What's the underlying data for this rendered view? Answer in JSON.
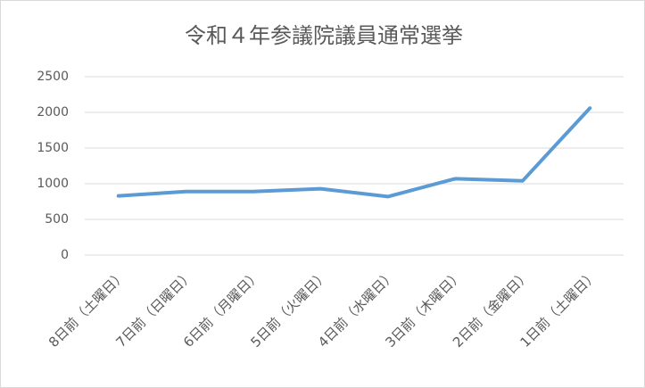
{
  "chart_data": {
    "type": "line",
    "title": "令和４年参議院議員通常選挙",
    "categories": [
      "8日前（土曜日）",
      "7日前（日曜日）",
      "6日前（月曜日）",
      "5日前（火曜日）",
      "4日前（水曜日）",
      "3日前（木曜日）",
      "2日前（金曜日）",
      "1日前（土曜日）"
    ],
    "series": [
      {
        "name": "",
        "color": "#5b9bd5",
        "values": [
          830,
          890,
          890,
          930,
          820,
          1070,
          1040,
          2060
        ]
      }
    ],
    "ylim": [
      0,
      2500
    ],
    "yticks": [
      0,
      500,
      1000,
      1500,
      2000,
      2500
    ],
    "grid": true
  }
}
